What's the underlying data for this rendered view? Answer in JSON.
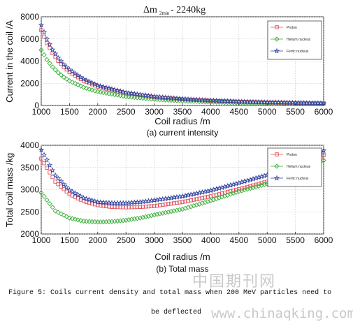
{
  "chart_data": [
    {
      "type": "scatter",
      "title_main": "Δm",
      "title_sub": "2min",
      "title_rest": " - 2240kg",
      "xlabel": "Coil radius /m",
      "ylabel": "Current in the coil /A",
      "subcaption": "(a) current intensity",
      "xlim": [
        1000,
        6000
      ],
      "ylim": [
        0,
        8000
      ],
      "xticks": [
        "1000",
        "1500",
        "2000",
        "2500",
        "3000",
        "3500",
        "4000",
        "4500",
        "5000",
        "5500",
        "6000"
      ],
      "yticks": [
        "0",
        "2000",
        "4000",
        "6000",
        "8000"
      ],
      "legend_position": "top-right",
      "series": [
        {
          "name": "Proton",
          "color": "#e0505a",
          "marker": "square",
          "x": [
            1000,
            1100,
            1200,
            1300,
            1400,
            1500,
            1750,
            2000,
            2500,
            3000,
            3500,
            4000,
            4500,
            5000,
            5500,
            6000
          ],
          "values": [
            6800,
            5620,
            4720,
            4020,
            3470,
            3020,
            2220,
            1700,
            1090,
            755,
            555,
            425,
            335,
            272,
            225,
            189
          ]
        },
        {
          "name": "Helium nucleus",
          "color": "#3aae3a",
          "marker": "diamond",
          "x": [
            1000,
            1100,
            1200,
            1300,
            1400,
            1500,
            1750,
            2000,
            2500,
            3000,
            3500,
            4000,
            4500,
            5000,
            5500,
            6000
          ],
          "values": [
            5000,
            4130,
            3470,
            2960,
            2550,
            2220,
            1630,
            1250,
            800,
            555,
            408,
            312,
            247,
            200,
            165,
            139
          ]
        },
        {
          "name": "Ferric nucleus",
          "color": "#2b3f9e",
          "marker": "star",
          "x": [
            1000,
            1100,
            1200,
            1300,
            1400,
            1500,
            1750,
            2000,
            2500,
            3000,
            3500,
            4000,
            4500,
            5000,
            5500,
            6000
          ],
          "values": [
            7250,
            5990,
            5030,
            4290,
            3700,
            3220,
            2370,
            1810,
            1160,
            805,
            592,
            453,
            358,
            290,
            240,
            201
          ]
        }
      ]
    },
    {
      "type": "scatter",
      "xlabel": "Coil radius /m",
      "ylabel": "Total coil mass /kg",
      "subcaption": "(b) Total mass",
      "xlim": [
        1000,
        6000
      ],
      "ylim": [
        2000,
        4000
      ],
      "xticks": [
        "1000",
        "1500",
        "2000",
        "2500",
        "3000",
        "3500",
        "4000",
        "4500",
        "5000",
        "5500",
        "6000"
      ],
      "yticks": [
        "2000",
        "2500",
        "3000",
        "3500",
        "4000"
      ],
      "legend_position": "top-right",
      "series": [
        {
          "name": "Proton",
          "color": "#e0505a",
          "marker": "square",
          "x": [
            1000,
            1250,
            1500,
            1750,
            2000,
            2250,
            2500,
            2750,
            3000,
            3500,
            4000,
            4500,
            5000,
            5500,
            6000
          ],
          "values": [
            3700,
            3180,
            2900,
            2740,
            2650,
            2610,
            2600,
            2610,
            2630,
            2720,
            2850,
            3010,
            3180,
            3450,
            3780
          ]
        },
        {
          "name": "Helium nucleus",
          "color": "#3aae3a",
          "marker": "diamond",
          "x": [
            1000,
            1250,
            1500,
            1750,
            2000,
            2250,
            2500,
            2750,
            3000,
            3500,
            4000,
            4500,
            5000,
            5500,
            6000
          ],
          "values": [
            2930,
            2520,
            2360,
            2290,
            2270,
            2280,
            2310,
            2360,
            2430,
            2560,
            2750,
            2960,
            3130,
            3380,
            3660
          ]
        },
        {
          "name": "Ferric nucleus",
          "color": "#2b3f9e",
          "marker": "star",
          "x": [
            1000,
            1250,
            1500,
            1750,
            2000,
            2250,
            2500,
            2750,
            3000,
            3500,
            4000,
            4500,
            5000,
            5500,
            6000
          ],
          "values": [
            3900,
            3320,
            2990,
            2810,
            2720,
            2700,
            2700,
            2720,
            2760,
            2850,
            2980,
            3150,
            3330,
            3580,
            3880
          ]
        }
      ]
    }
  ],
  "figure": {
    "caption_line1": "Figure 5: Coils current density and total mass when 200 MeV particles need to",
    "caption_line2": "be deflected"
  },
  "watermark": {
    "cn": "中国期刊网",
    "url": "www.chinaqking.com"
  }
}
